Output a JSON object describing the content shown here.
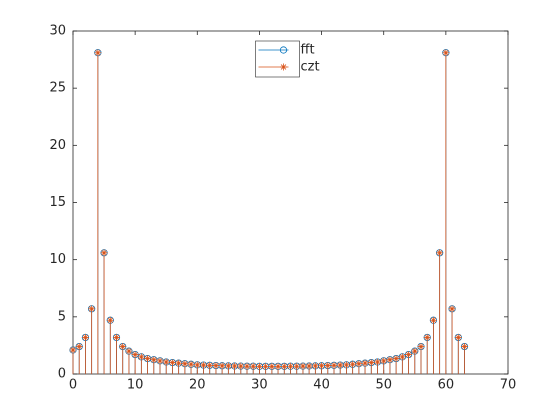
{
  "chart_data": {
    "type": "stem",
    "x": [
      0,
      1,
      2,
      3,
      4,
      5,
      6,
      7,
      8,
      9,
      10,
      11,
      12,
      13,
      14,
      15,
      16,
      17,
      18,
      19,
      20,
      21,
      22,
      23,
      24,
      25,
      26,
      27,
      28,
      29,
      30,
      31,
      32,
      33,
      34,
      35,
      36,
      37,
      38,
      39,
      40,
      41,
      42,
      43,
      44,
      45,
      46,
      47,
      48,
      49,
      50,
      51,
      52,
      53,
      54,
      55,
      56,
      57,
      58,
      59,
      60,
      61,
      62,
      63
    ],
    "series": [
      {
        "name": "fft",
        "color": "#0072bd",
        "marker": "circle",
        "values": [
          2.1,
          2.4,
          3.2,
          5.7,
          28.1,
          10.6,
          4.7,
          3.2,
          2.4,
          2.0,
          1.7,
          1.5,
          1.35,
          1.25,
          1.15,
          1.05,
          1.0,
          0.95,
          0.9,
          0.85,
          0.8,
          0.78,
          0.76,
          0.74,
          0.72,
          0.71,
          0.7,
          0.69,
          0.68,
          0.68,
          0.67,
          0.67,
          0.67,
          0.67,
          0.67,
          0.68,
          0.68,
          0.69,
          0.7,
          0.71,
          0.72,
          0.74,
          0.76,
          0.78,
          0.8,
          0.85,
          0.9,
          0.95,
          1.0,
          1.05,
          1.15,
          1.25,
          1.35,
          1.5,
          1.7,
          2.0,
          2.4,
          3.2,
          4.7,
          10.6,
          28.1,
          5.7,
          3.2,
          2.4
        ]
      },
      {
        "name": "czt",
        "color": "#d95319",
        "marker": "asterisk",
        "values": [
          2.1,
          2.4,
          3.2,
          5.7,
          28.1,
          10.6,
          4.7,
          3.2,
          2.4,
          2.0,
          1.7,
          1.5,
          1.35,
          1.25,
          1.15,
          1.05,
          1.0,
          0.95,
          0.9,
          0.85,
          0.8,
          0.78,
          0.76,
          0.74,
          0.72,
          0.71,
          0.7,
          0.69,
          0.68,
          0.68,
          0.67,
          0.67,
          0.67,
          0.67,
          0.67,
          0.68,
          0.68,
          0.69,
          0.7,
          0.71,
          0.72,
          0.74,
          0.76,
          0.78,
          0.8,
          0.85,
          0.9,
          0.95,
          1.0,
          1.05,
          1.15,
          1.25,
          1.35,
          1.5,
          1.7,
          2.0,
          2.4,
          3.2,
          4.7,
          10.6,
          28.1,
          5.7,
          3.2,
          2.4
        ]
      }
    ],
    "xlim": [
      0,
      70
    ],
    "xticks": [
      0,
      10,
      20,
      30,
      40,
      50,
      60,
      70
    ],
    "ylim": [
      0,
      30
    ],
    "yticks": [
      0,
      5,
      10,
      15,
      20,
      25,
      30
    ],
    "grid": false,
    "legend": "north"
  }
}
